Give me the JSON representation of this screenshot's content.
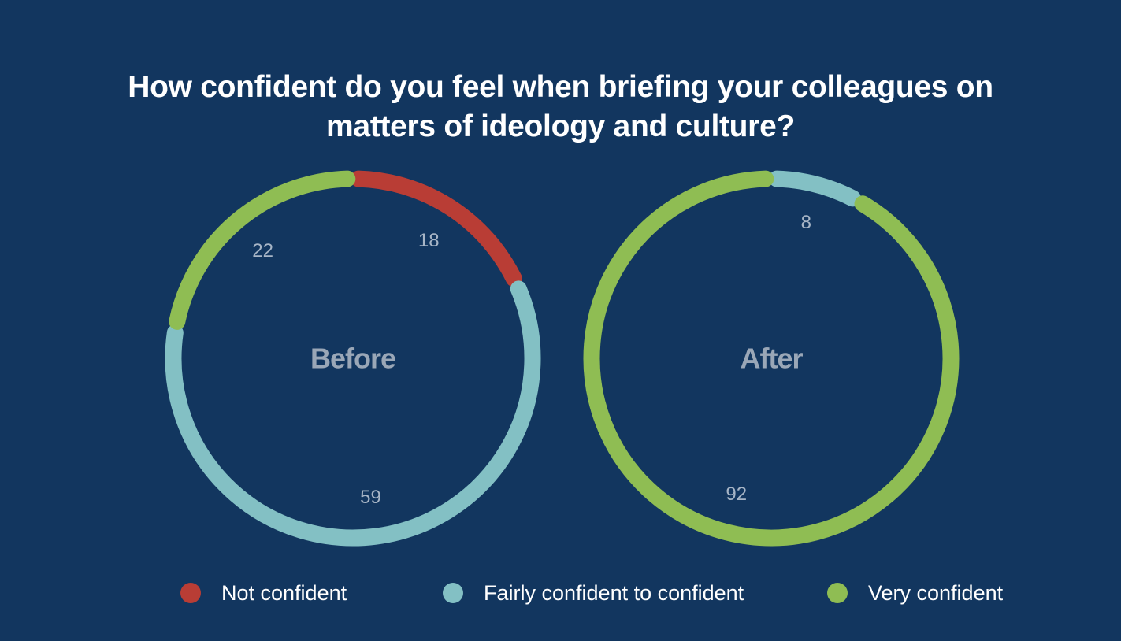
{
  "colors": {
    "background": "#12365f",
    "not_confident": "#b93d35",
    "fairly_confident": "#83c0c4",
    "very_confident": "#8fbd53"
  },
  "chart_data": {
    "type": "pie",
    "title": "How confident do you feel when briefing your colleagues on matters of ideology and culture?",
    "title_lines": [
      "How confident do you feel when briefing your colleagues on",
      "matters of ideology and culture?"
    ],
    "legend_placement": "bottom",
    "categories": [
      "Not confident",
      "Fairly confident to confident",
      "Very confident"
    ],
    "category_colors": [
      "#b93d35",
      "#83c0c4",
      "#8fbd53"
    ],
    "series": [
      {
        "name": "Before",
        "values": [
          18,
          59,
          22
        ]
      },
      {
        "name": "After",
        "values": [
          0,
          8,
          92
        ]
      }
    ]
  }
}
